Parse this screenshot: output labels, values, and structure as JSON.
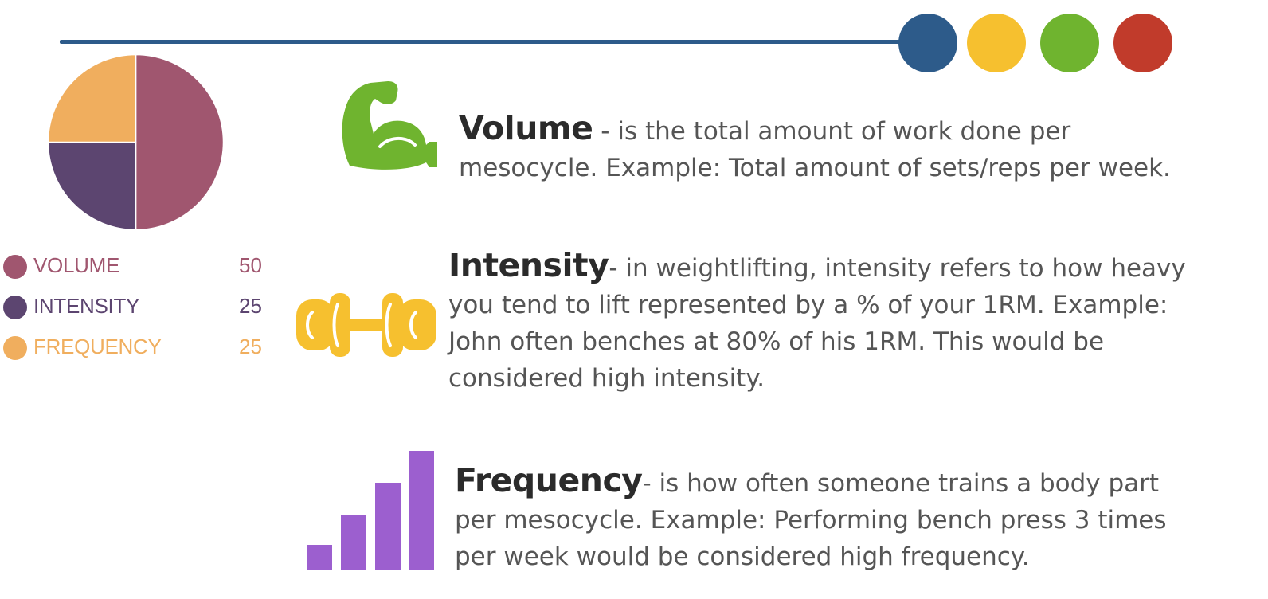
{
  "colors": {
    "line": "#2d5b8a",
    "dots": [
      "#2d5b8a",
      "#f6c02f",
      "#6fb42f",
      "#c13b2b"
    ],
    "volume": "#a0566f",
    "intensity": "#5c4570",
    "frequency": "#f0ae5e",
    "arm_icon": "#6fb42f",
    "dumbbell_icon": "#f6c02f",
    "bars_icon": "#9c5fcf",
    "term_text": "#2b2b2b",
    "body_text": "#555555"
  },
  "chart_data": {
    "type": "pie",
    "categories": [
      "VOLUME",
      "INTENSITY",
      "FREQUENCY"
    ],
    "values": [
      50,
      25,
      25
    ],
    "colors": [
      "#a0566f",
      "#5c4570",
      "#f0ae5e"
    ],
    "legend_position": "bottom"
  },
  "legend": [
    {
      "label": "VOLUME",
      "value": "50"
    },
    {
      "label": "INTENSITY",
      "value": "25"
    },
    {
      "label": "FREQUENCY",
      "value": "25"
    }
  ],
  "sections": {
    "volume": {
      "term": "Volume",
      "line1": " - is the total amount of work done per",
      "line2": "mesocycle. Example: Total amount of sets/reps per week.",
      "icon": "flexed-arm-icon"
    },
    "intensity": {
      "term": "Intensity",
      "line1": "- in weightlifting, intensity refers to how heavy",
      "line2": "you tend to lift represented by a % of your 1RM. Example:",
      "line3": "John often benches at 80% of his 1RM. This  would be",
      "line4": "considered high intensity.",
      "icon": "dumbbell-icon"
    },
    "frequency": {
      "term": "Frequency",
      "line1": "- is how often someone trains a body part",
      "line2": "per mesocycle. Example: Performing bench press 3 times",
      "line3": "per week would be considered high frequency.",
      "icon": "bar-chart-icon"
    }
  }
}
